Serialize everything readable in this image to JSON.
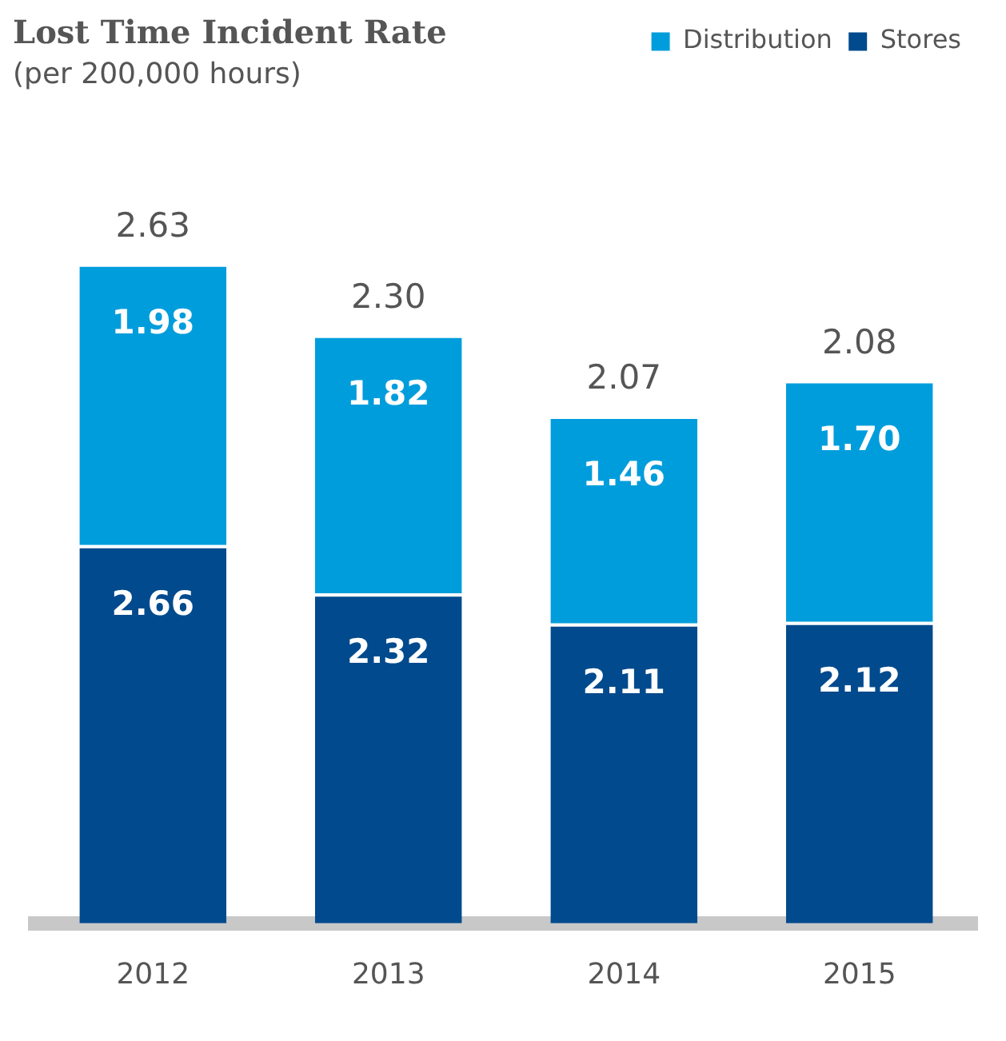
{
  "chart_data": {
    "type": "bar",
    "title": "Lost Time Incident Rate",
    "subtitle": "(per 200,000 hours)",
    "categories": [
      "2012",
      "2013",
      "2014",
      "2015"
    ],
    "stacked": true,
    "legend": "top right",
    "grid": false,
    "series": [
      {
        "name": "Stores",
        "color": "#004a8d",
        "values": [
          2.66,
          2.32,
          2.11,
          2.12
        ],
        "value_labels": [
          "2.66",
          "2.32",
          "2.11",
          "2.12"
        ]
      },
      {
        "name": "Distribution",
        "color": "#009ddc",
        "values": [
          1.98,
          1.82,
          1.46,
          1.7
        ],
        "value_labels": [
          "1.98",
          "1.82",
          "1.46",
          "1.70"
        ]
      }
    ],
    "annotations": [
      {
        "text": "2.63",
        "x": "2012",
        "y": 4.64
      },
      {
        "text": "2.30",
        "x": "2013",
        "y": 4.14
      },
      {
        "text": "2.07",
        "x": "2014",
        "y": 3.57
      },
      {
        "text": "2.08",
        "x": "2015",
        "y": 3.82
      }
    ]
  }
}
